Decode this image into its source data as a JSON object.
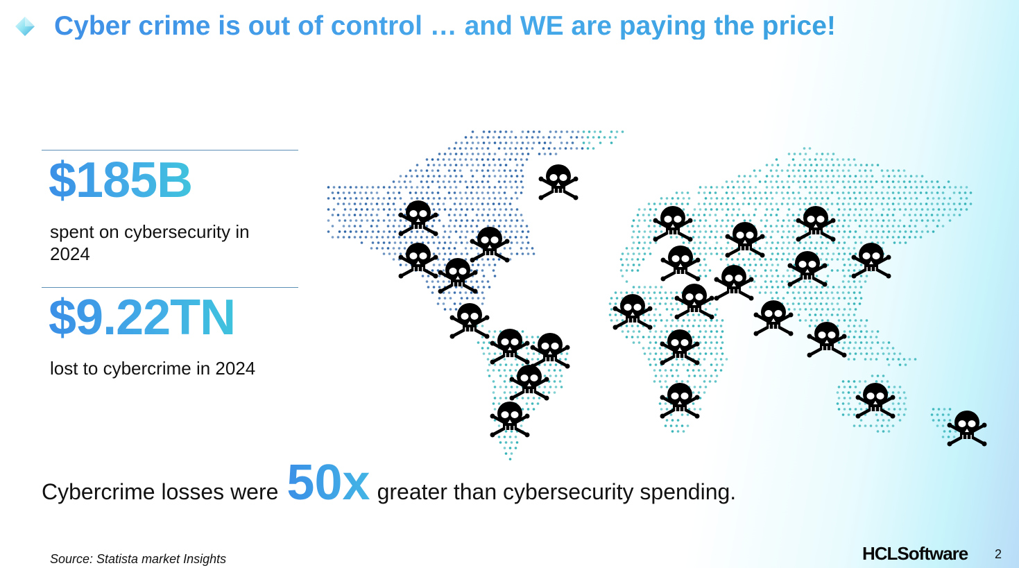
{
  "slide": {
    "title": "Cyber crime is out of control … and WE are paying the price!",
    "stat1": {
      "value": "$185B",
      "label": "spent on cybersecurity in 2024"
    },
    "stat2": {
      "value": "$9.22TN",
      "label": "lost to cybercrime in 2024"
    },
    "comparison": {
      "before": "Cybercrime losses were",
      "emphasis": "50x",
      "after": "greater than cybersecurity spending."
    },
    "source": "Source: Statista market Insights",
    "logo": "HCLSoftware",
    "page_number": "2"
  },
  "map": {
    "icon": "skull-and-crossbones-icon",
    "dot_color_west": "#2a63a6",
    "dot_color_east": "#35b3b8",
    "skull_color": "#000000"
  },
  "colors": {
    "accent": "#3f90e6",
    "accent_light": "#3fc3dd"
  }
}
